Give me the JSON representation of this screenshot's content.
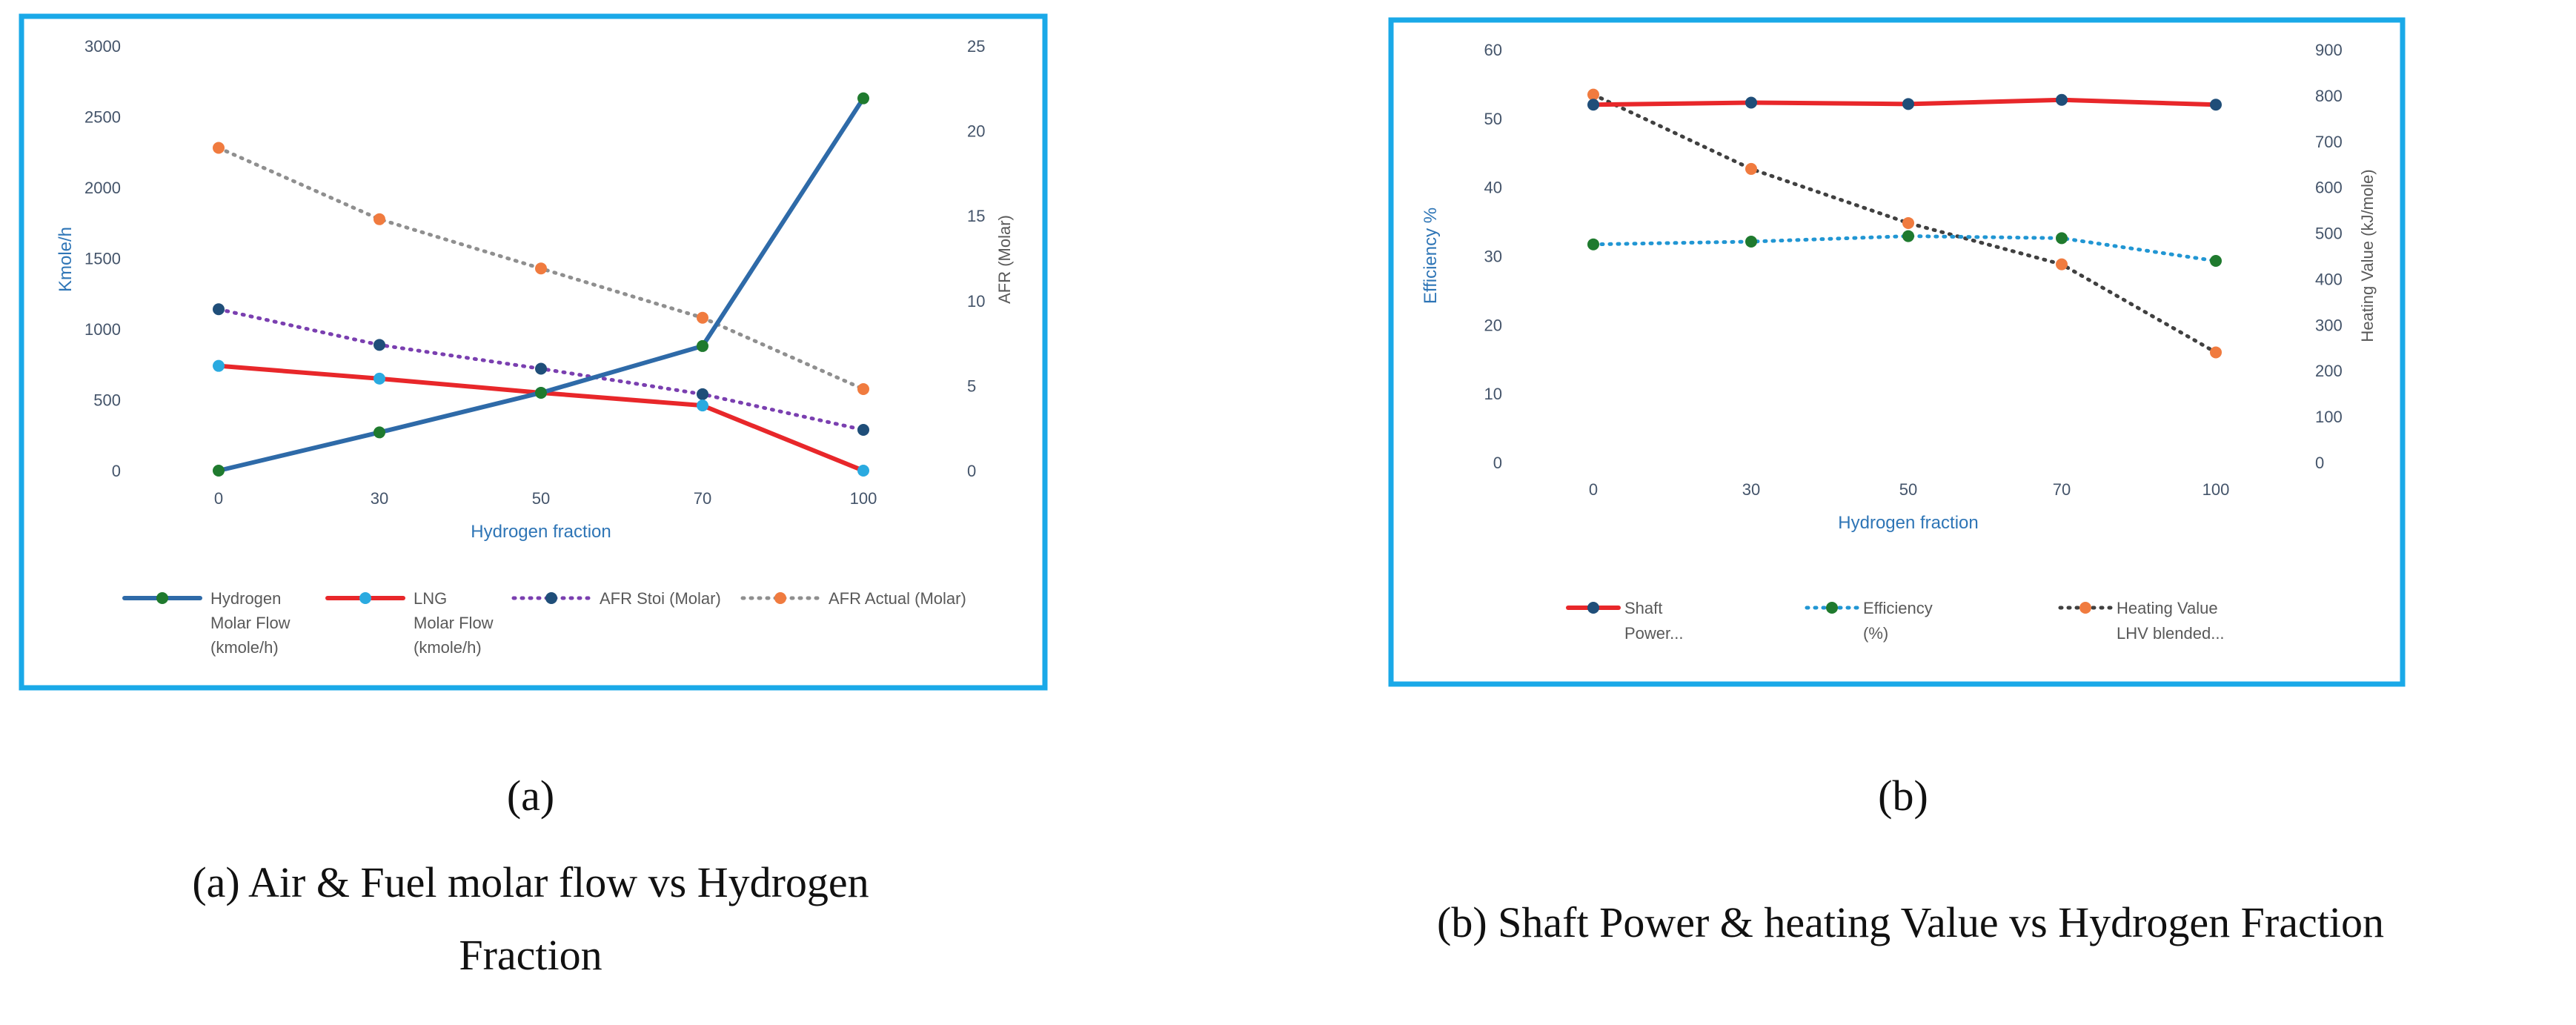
{
  "colors": {
    "frame": "#1aa9e8",
    "hydrogen": "#2e6aa8",
    "lng": "#e8272a",
    "afr_stoi": "#7a3fb0",
    "afr_actual": "#8f8f8f",
    "marker_green": "#1f7a2e",
    "marker_lightblue": "#2aaae0",
    "marker_navy": "#1f4e79",
    "marker_orange": "#f07b3f",
    "shaft": "#e8272a",
    "efficiency": "#2196d3",
    "heating": "#404040"
  },
  "chart_data": [
    {
      "type": "line",
      "x": [
        0,
        30,
        50,
        70,
        100
      ],
      "categories": [
        "0",
        "30",
        "50",
        "70",
        "100"
      ],
      "xlabel": "Hydrogen fraction",
      "ylabel": "Kmole/h",
      "y2label": "AFR (Molar)",
      "ylim": [
        0,
        3000
      ],
      "y2lim": [
        0,
        25
      ],
      "yticks": [
        "0",
        "500",
        "1000",
        "1500",
        "2000",
        "2500",
        "3000"
      ],
      "y2ticks": [
        "0",
        "5",
        "10",
        "15",
        "20",
        "25"
      ],
      "series": [
        {
          "name": "Hydrogen Molar Flow (kmole/h)",
          "legend_lines": [
            "Hydrogen",
            "Molar Flow",
            "(kmole/h)"
          ],
          "axis": "left",
          "style": "solid",
          "values": [
            0,
            270,
            550,
            880,
            2630
          ]
        },
        {
          "name": "LNG Molar Flow (kmole/h)",
          "legend_lines": [
            "LNG",
            "Molar Flow",
            "(kmole/h)"
          ],
          "axis": "left",
          "style": "solid",
          "values": [
            740,
            650,
            550,
            460,
            0
          ]
        },
        {
          "name": "AFR Stoi (Molar)",
          "legend_lines": [
            "AFR Stoi (Molar)"
          ],
          "axis": "right",
          "style": "dotted",
          "values": [
            9.5,
            7.4,
            6.0,
            4.5,
            2.4
          ]
        },
        {
          "name": "AFR Actual (Molar)",
          "legend_lines": [
            "AFR Actual (Molar)"
          ],
          "axis": "right",
          "style": "dotted",
          "values": [
            19.0,
            14.8,
            11.9,
            9.0,
            4.8
          ]
        }
      ],
      "subfigure_label": "(a)",
      "caption_lines": [
        "(a) Air & Fuel molar flow vs Hydrogen",
        "Fraction"
      ]
    },
    {
      "type": "line",
      "x": [
        0,
        30,
        50,
        70,
        100
      ],
      "categories": [
        "0",
        "30",
        "50",
        "70",
        "100"
      ],
      "xlabel": "Hydrogen fraction",
      "ylabel": "Efficiency %",
      "y2label": "Heating Value (kJ/mole)",
      "ylim": [
        0,
        60
      ],
      "y2lim": [
        0,
        900
      ],
      "yticks": [
        "0",
        "10",
        "20",
        "30",
        "40",
        "50",
        "60"
      ],
      "y2ticks": [
        "0",
        "100",
        "200",
        "300",
        "400",
        "500",
        "600",
        "700",
        "800",
        "900"
      ],
      "series": [
        {
          "name": "Shaft Power...",
          "legend_lines": [
            "Shaft",
            "Power..."
          ],
          "axis": "left",
          "style": "solid",
          "values": [
            52.0,
            52.3,
            52.1,
            52.7,
            52.0
          ]
        },
        {
          "name": "Efficiency (%)",
          "legend_lines": [
            "Efficiency",
            "(%)"
          ],
          "axis": "left",
          "style": "dotted",
          "values": [
            31.7,
            32.1,
            32.9,
            32.6,
            29.3
          ]
        },
        {
          "name": "Heating Value LHV blended...",
          "legend_lines": [
            "Heating Value",
            "LHV blended..."
          ],
          "axis": "right",
          "style": "dotted",
          "values": [
            802,
            640,
            522,
            432,
            240
          ]
        }
      ],
      "subfigure_label": "(b)",
      "caption_lines": [
        "(b) Shaft Power & heating Value vs Hydrogen Fraction"
      ]
    }
  ]
}
